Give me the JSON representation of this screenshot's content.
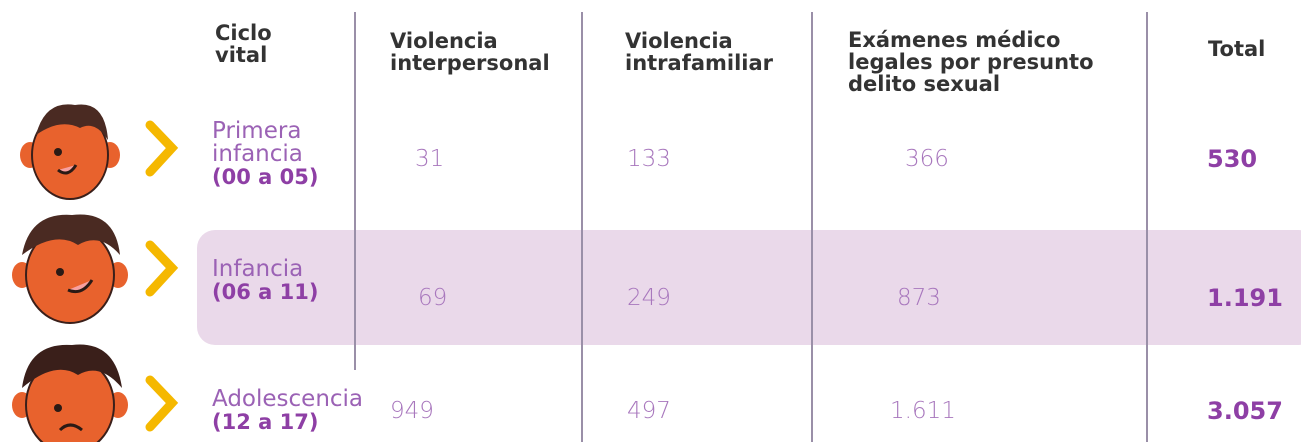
{
  "table": {
    "headers": [
      "Ciclo vital",
      "Violencia interpersonal",
      "Violencia intrafamiliar",
      "Exámenes médico legales por presunto delito sexual",
      "Total"
    ],
    "rows": [
      {
        "label": "Primera infancia",
        "range": "(00 a 05)",
        "values": [
          "31",
          "133",
          "366"
        ],
        "total": "530"
      },
      {
        "label": "Infancia",
        "range": "(06 a 11)",
        "values": [
          "69",
          "249",
          "873"
        ],
        "total": "1.191"
      },
      {
        "label": "Adolescencia",
        "range": "(12 a 17)",
        "values": [
          "949",
          "497",
          "1.611"
        ],
        "total": "3.057"
      }
    ]
  }
}
